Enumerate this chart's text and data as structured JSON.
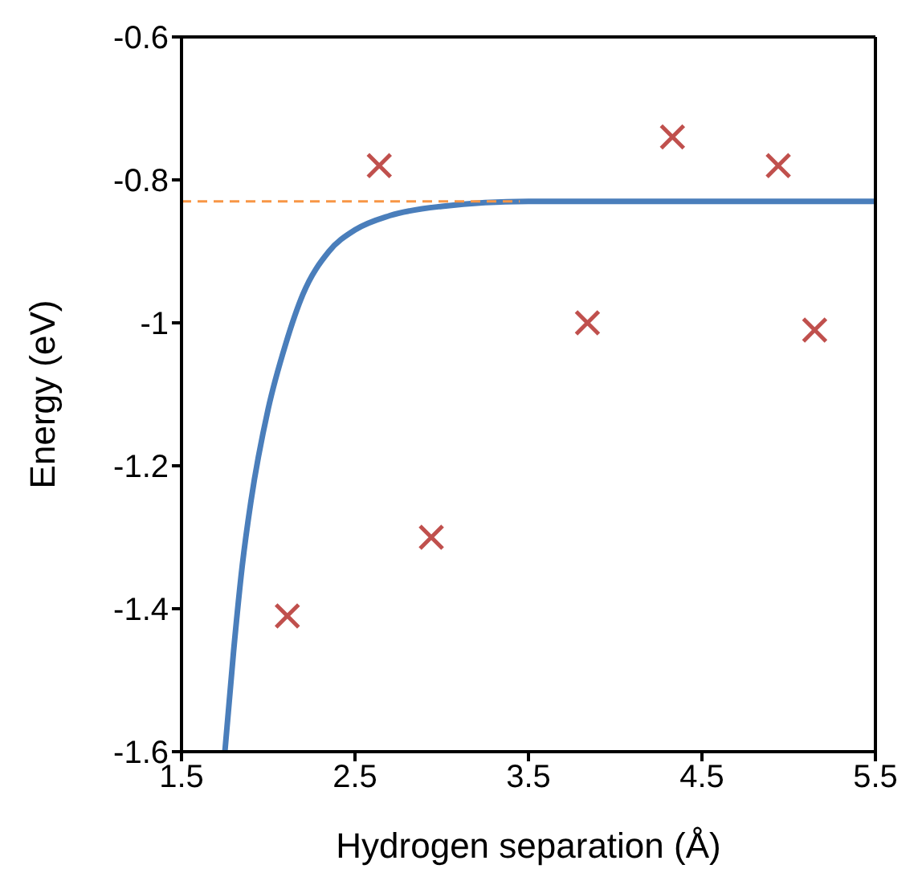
{
  "chart_data": {
    "type": "scatter",
    "xlabel": "Hydrogen separation (Å)",
    "ylabel": "Energy (eV)",
    "xlim": [
      1.5,
      5.5
    ],
    "ylim": [
      -1.6,
      -0.6
    ],
    "xticks": [
      1.5,
      2.5,
      3.5,
      4.5,
      5.5
    ],
    "yticks": [
      -1.6,
      -1.4,
      -1.2,
      -1,
      -0.8,
      -0.6
    ],
    "grid": false,
    "legend": false,
    "series": [
      {
        "type": "line",
        "color": "#4a7ebb",
        "x": [
          1.75,
          1.8,
          1.85,
          1.9,
          2.0,
          2.1,
          2.2,
          2.35,
          2.5,
          2.7,
          3.0,
          3.5,
          4.5,
          5.5
        ],
        "values": [
          -1.6,
          -1.46,
          -1.34,
          -1.25,
          -1.12,
          -1.03,
          -0.96,
          -0.9,
          -0.87,
          -0.85,
          -0.837,
          -0.83,
          -0.83,
          -0.83
        ]
      },
      {
        "type": "line",
        "color": "#f79646",
        "line_style": "dashed",
        "x": [
          1.5,
          3.45
        ],
        "values": [
          -0.83,
          -0.83
        ]
      },
      {
        "marker": "cross",
        "color": "#c0504d",
        "x": [
          2.11,
          2.64,
          2.94,
          3.84,
          4.33,
          4.94,
          5.15
        ],
        "values": [
          -1.41,
          -0.78,
          -1.3,
          -1.0,
          -0.74,
          -0.78,
          -1.01
        ]
      }
    ]
  }
}
